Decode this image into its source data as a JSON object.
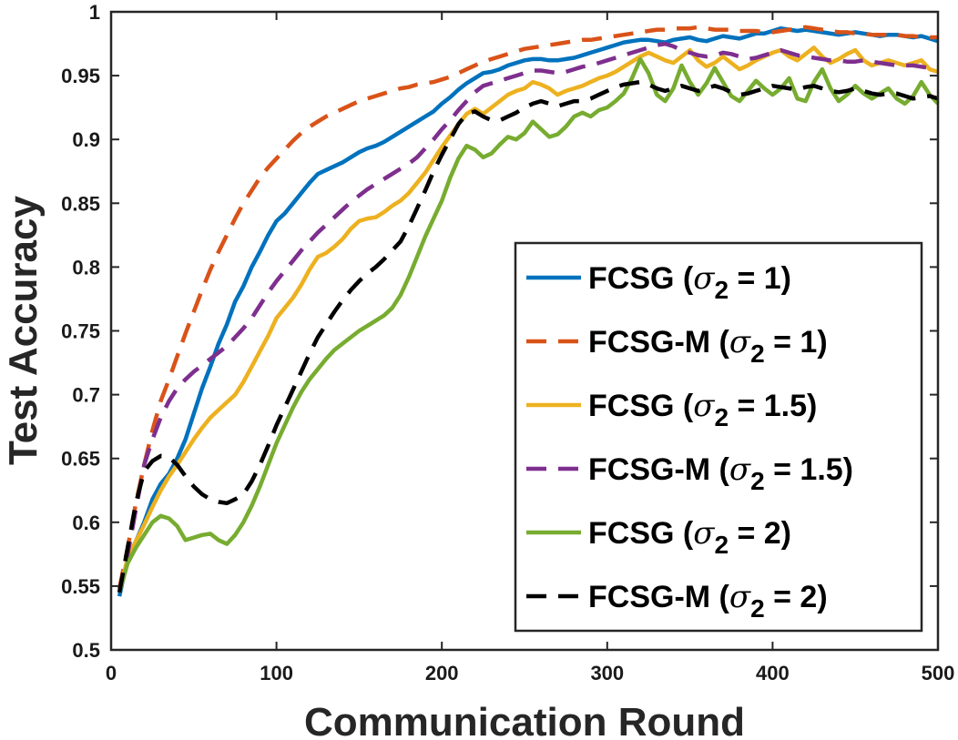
{
  "chart_data": {
    "type": "line",
    "title": "",
    "xlabel": "Communication Round",
    "ylabel": "Test Accuracy",
    "xlim": [
      0,
      500
    ],
    "ylim": [
      0.5,
      1
    ],
    "xticks": [
      0,
      100,
      200,
      300,
      400,
      500
    ],
    "yticks": [
      0.5,
      0.55,
      0.6,
      0.65,
      0.7,
      0.75,
      0.8,
      0.85,
      0.9,
      0.95,
      1
    ],
    "xtick_labels": [
      "0",
      "100",
      "200",
      "300",
      "400",
      "500"
    ],
    "ytick_labels": [
      "0.5",
      "0.55",
      "0.6",
      "0.65",
      "0.7",
      "0.75",
      "0.8",
      "0.85",
      "0.9",
      "0.95",
      "1"
    ],
    "grid": false,
    "legend_position": "lower-right",
    "x": [
      5,
      10,
      15,
      20,
      25,
      30,
      35,
      40,
      45,
      50,
      55,
      60,
      65,
      70,
      75,
      80,
      85,
      90,
      95,
      100,
      105,
      110,
      115,
      120,
      125,
      130,
      135,
      140,
      145,
      150,
      155,
      160,
      165,
      170,
      175,
      180,
      185,
      190,
      195,
      200,
      205,
      210,
      215,
      220,
      225,
      230,
      235,
      240,
      245,
      250,
      255,
      260,
      265,
      270,
      275,
      280,
      285,
      290,
      295,
      300,
      305,
      310,
      315,
      320,
      325,
      330,
      335,
      340,
      345,
      350,
      355,
      360,
      365,
      370,
      375,
      380,
      385,
      390,
      395,
      400,
      405,
      410,
      415,
      420,
      425,
      430,
      435,
      440,
      445,
      450,
      455,
      460,
      465,
      470,
      475,
      480,
      485,
      490,
      495,
      500
    ],
    "series": [
      {
        "name": "FCSG (σ2 = 1)",
        "color": "#0072BD",
        "dash": "solid",
        "values": [
          0.542,
          0.572,
          0.585,
          0.6,
          0.618,
          0.63,
          0.638,
          0.65,
          0.665,
          0.685,
          0.705,
          0.722,
          0.74,
          0.755,
          0.773,
          0.785,
          0.8,
          0.812,
          0.825,
          0.836,
          0.842,
          0.85,
          0.858,
          0.866,
          0.873,
          0.876,
          0.879,
          0.882,
          0.886,
          0.89,
          0.893,
          0.895,
          0.898,
          0.902,
          0.906,
          0.91,
          0.914,
          0.918,
          0.922,
          0.928,
          0.933,
          0.939,
          0.944,
          0.948,
          0.952,
          0.953,
          0.955,
          0.958,
          0.96,
          0.962,
          0.963,
          0.963,
          0.962,
          0.962,
          0.963,
          0.964,
          0.966,
          0.968,
          0.97,
          0.972,
          0.974,
          0.976,
          0.977,
          0.978,
          0.978,
          0.977,
          0.976,
          0.978,
          0.979,
          0.98,
          0.978,
          0.977,
          0.979,
          0.981,
          0.98,
          0.979,
          0.981,
          0.983,
          0.983,
          0.985,
          0.987,
          0.986,
          0.985,
          0.986,
          0.985,
          0.984,
          0.983,
          0.982,
          0.983,
          0.984,
          0.983,
          0.982,
          0.981,
          0.982,
          0.982,
          0.981,
          0.98,
          0.981,
          0.979,
          0.977
        ]
      },
      {
        "name": "FCSG-M (σ2 = 1)",
        "color": "#D95319",
        "dash": "dashed",
        "values": [
          0.548,
          0.58,
          0.615,
          0.645,
          0.672,
          0.695,
          0.712,
          0.73,
          0.748,
          0.765,
          0.782,
          0.798,
          0.812,
          0.825,
          0.838,
          0.85,
          0.86,
          0.87,
          0.878,
          0.885,
          0.892,
          0.899,
          0.905,
          0.91,
          0.914,
          0.918,
          0.921,
          0.924,
          0.927,
          0.93,
          0.932,
          0.934,
          0.936,
          0.938,
          0.94,
          0.941,
          0.943,
          0.944,
          0.945,
          0.947,
          0.949,
          0.952,
          0.955,
          0.958,
          0.961,
          0.963,
          0.965,
          0.967,
          0.969,
          0.971,
          0.972,
          0.973,
          0.974,
          0.975,
          0.976,
          0.977,
          0.978,
          0.978,
          0.979,
          0.98,
          0.981,
          0.982,
          0.983,
          0.984,
          0.985,
          0.986,
          0.986,
          0.987,
          0.987,
          0.987,
          0.988,
          0.987,
          0.986,
          0.986,
          0.986,
          0.985,
          0.985,
          0.985,
          0.984,
          0.984,
          0.985,
          0.986,
          0.987,
          0.988,
          0.987,
          0.986,
          0.985,
          0.984,
          0.984,
          0.983,
          0.983,
          0.982,
          0.982,
          0.982,
          0.982,
          0.981,
          0.981,
          0.98,
          0.98,
          0.98
        ]
      },
      {
        "name": "FCSG (σ2 = 1.5)",
        "color": "#EDB120",
        "dash": "solid",
        "values": [
          0.545,
          0.572,
          0.585,
          0.598,
          0.612,
          0.625,
          0.636,
          0.645,
          0.655,
          0.665,
          0.674,
          0.682,
          0.688,
          0.694,
          0.7,
          0.71,
          0.722,
          0.734,
          0.746,
          0.76,
          0.768,
          0.776,
          0.786,
          0.798,
          0.808,
          0.811,
          0.816,
          0.822,
          0.83,
          0.836,
          0.838,
          0.839,
          0.843,
          0.848,
          0.852,
          0.858,
          0.866,
          0.874,
          0.884,
          0.894,
          0.903,
          0.912,
          0.92,
          0.924,
          0.92,
          0.925,
          0.93,
          0.935,
          0.938,
          0.94,
          0.945,
          0.943,
          0.94,
          0.935,
          0.938,
          0.94,
          0.942,
          0.945,
          0.948,
          0.95,
          0.953,
          0.957,
          0.961,
          0.965,
          0.968,
          0.965,
          0.962,
          0.96,
          0.965,
          0.97,
          0.962,
          0.957,
          0.96,
          0.965,
          0.96,
          0.955,
          0.958,
          0.962,
          0.965,
          0.968,
          0.97,
          0.965,
          0.962,
          0.967,
          0.972,
          0.965,
          0.96,
          0.963,
          0.967,
          0.97,
          0.962,
          0.958,
          0.96,
          0.962,
          0.96,
          0.958,
          0.96,
          0.962,
          0.955,
          0.953
        ]
      },
      {
        "name": "FCSG-M (σ2 = 1.5)",
        "color": "#7E2F8E",
        "dash": "dashed",
        "values": [
          0.545,
          0.575,
          0.61,
          0.645,
          0.665,
          0.682,
          0.695,
          0.705,
          0.712,
          0.718,
          0.723,
          0.728,
          0.733,
          0.738,
          0.745,
          0.752,
          0.76,
          0.77,
          0.78,
          0.789,
          0.797,
          0.805,
          0.813,
          0.82,
          0.827,
          0.833,
          0.839,
          0.845,
          0.851,
          0.856,
          0.861,
          0.865,
          0.869,
          0.873,
          0.877,
          0.881,
          0.886,
          0.893,
          0.9,
          0.908,
          0.915,
          0.923,
          0.93,
          0.937,
          0.942,
          0.944,
          0.946,
          0.948,
          0.95,
          0.952,
          0.954,
          0.954,
          0.953,
          0.952,
          0.953,
          0.955,
          0.957,
          0.958,
          0.96,
          0.962,
          0.964,
          0.966,
          0.968,
          0.97,
          0.972,
          0.974,
          0.975,
          0.973,
          0.97,
          0.968,
          0.966,
          0.965,
          0.966,
          0.968,
          0.967,
          0.965,
          0.963,
          0.964,
          0.966,
          0.968,
          0.97,
          0.968,
          0.966,
          0.965,
          0.964,
          0.963,
          0.962,
          0.962,
          0.961,
          0.961,
          0.962,
          0.961,
          0.96,
          0.959,
          0.958,
          0.958,
          0.958,
          0.957,
          0.956,
          0.955
        ]
      },
      {
        "name": "FCSG (σ2 = 2)",
        "color": "#77AC30",
        "dash": "solid",
        "values": [
          0.545,
          0.568,
          0.58,
          0.59,
          0.6,
          0.605,
          0.603,
          0.597,
          0.586,
          0.588,
          0.59,
          0.591,
          0.586,
          0.583,
          0.59,
          0.6,
          0.613,
          0.628,
          0.645,
          0.662,
          0.676,
          0.69,
          0.702,
          0.712,
          0.72,
          0.728,
          0.735,
          0.74,
          0.745,
          0.75,
          0.754,
          0.758,
          0.762,
          0.768,
          0.778,
          0.792,
          0.808,
          0.824,
          0.838,
          0.852,
          0.87,
          0.885,
          0.895,
          0.892,
          0.886,
          0.889,
          0.896,
          0.902,
          0.9,
          0.905,
          0.914,
          0.908,
          0.902,
          0.904,
          0.91,
          0.918,
          0.921,
          0.918,
          0.923,
          0.925,
          0.93,
          0.936,
          0.948,
          0.963,
          0.952,
          0.935,
          0.93,
          0.94,
          0.958,
          0.945,
          0.935,
          0.944,
          0.956,
          0.945,
          0.934,
          0.93,
          0.938,
          0.946,
          0.94,
          0.935,
          0.94,
          0.948,
          0.932,
          0.93,
          0.945,
          0.955,
          0.94,
          0.93,
          0.935,
          0.942,
          0.936,
          0.932,
          0.936,
          0.94,
          0.932,
          0.928,
          0.934,
          0.945,
          0.935,
          0.928
        ]
      },
      {
        "name": "FCSG-M (σ2 = 2)",
        "color": "#000000",
        "dash": "dashed",
        "values": [
          0.545,
          0.58,
          0.615,
          0.64,
          0.648,
          0.652,
          0.651,
          0.645,
          0.636,
          0.628,
          0.622,
          0.618,
          0.616,
          0.615,
          0.618,
          0.622,
          0.632,
          0.645,
          0.66,
          0.676,
          0.69,
          0.704,
          0.718,
          0.732,
          0.745,
          0.755,
          0.765,
          0.774,
          0.782,
          0.789,
          0.795,
          0.8,
          0.806,
          0.813,
          0.82,
          0.832,
          0.846,
          0.86,
          0.875,
          0.888,
          0.9,
          0.912,
          0.92,
          0.922,
          0.918,
          0.915,
          0.915,
          0.918,
          0.921,
          0.925,
          0.928,
          0.93,
          0.928,
          0.926,
          0.928,
          0.93,
          0.93,
          0.932,
          0.935,
          0.938,
          0.941,
          0.943,
          0.944,
          0.945,
          0.943,
          0.94,
          0.938,
          0.94,
          0.942,
          0.94,
          0.938,
          0.94,
          0.942,
          0.94,
          0.937,
          0.935,
          0.936,
          0.938,
          0.94,
          0.942,
          0.941,
          0.94,
          0.939,
          0.941,
          0.942,
          0.94,
          0.938,
          0.937,
          0.938,
          0.94,
          0.938,
          0.936,
          0.935,
          0.936,
          0.936,
          0.934,
          0.932,
          0.933,
          0.934,
          0.932
        ]
      }
    ],
    "legend": [
      {
        "prefix": "FCSG (",
        "symbol": "σ",
        "subscript": "2",
        "suffix": " = 1)"
      },
      {
        "prefix": "FCSG-M (",
        "symbol": "σ",
        "subscript": "2",
        "suffix": " = 1)"
      },
      {
        "prefix": "FCSG (",
        "symbol": "σ",
        "subscript": "2",
        "suffix": " = 1.5)"
      },
      {
        "prefix": "FCSG-M (",
        "symbol": "σ",
        "subscript": "2",
        "suffix": " = 1.5)"
      },
      {
        "prefix": "FCSG (",
        "symbol": "σ",
        "subscript": "2",
        "suffix": " = 2)"
      },
      {
        "prefix": "FCSG-M (",
        "symbol": "σ",
        "subscript": "2",
        "suffix": " = 2)"
      }
    ]
  }
}
